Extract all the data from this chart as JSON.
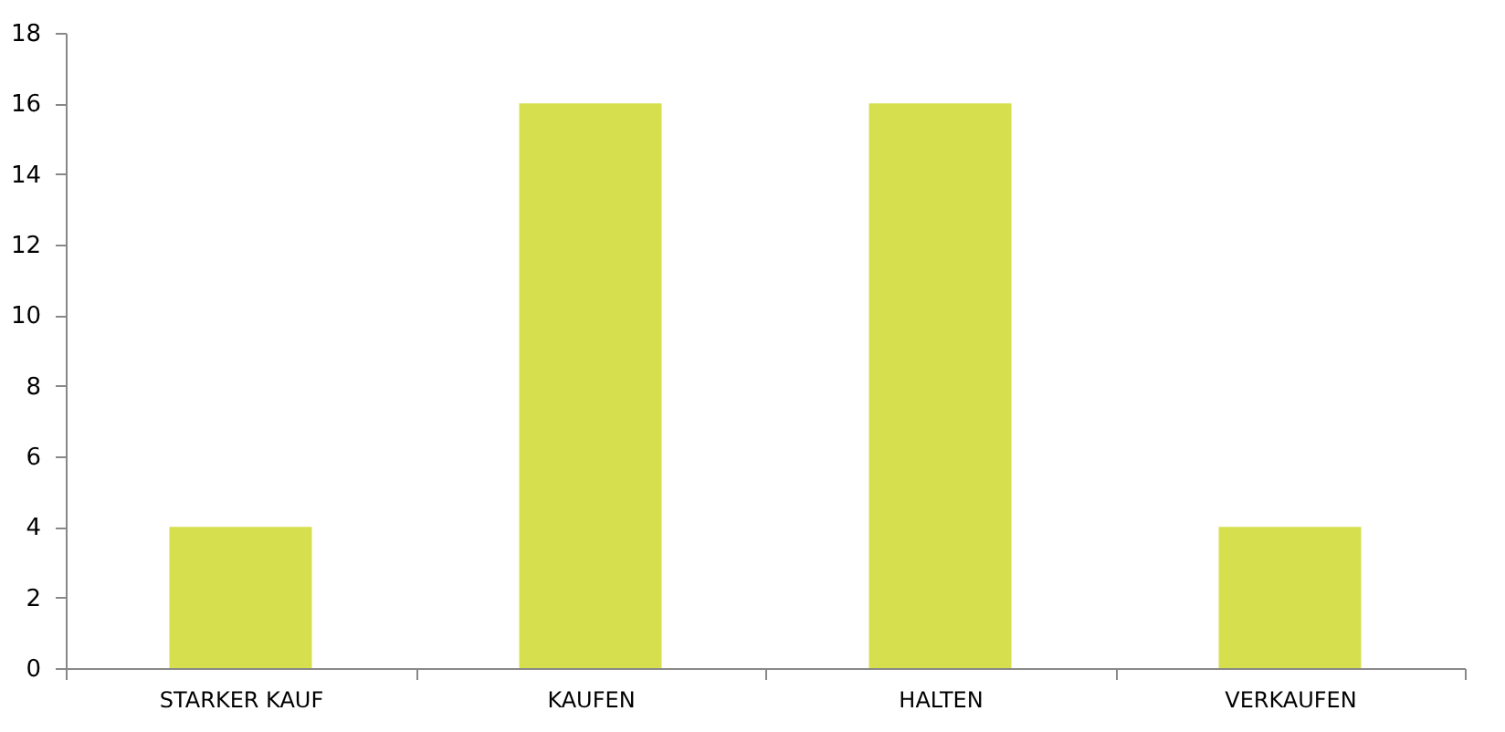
{
  "chart_data": {
    "type": "bar",
    "categories": [
      "STARKER KAUF",
      "KAUFEN",
      "HALTEN",
      "VERKAUFEN"
    ],
    "values": [
      4,
      16,
      16,
      4
    ],
    "color": "#d6e04e",
    "ylim": [
      0,
      18
    ],
    "yticks": [
      0,
      2,
      4,
      6,
      8,
      10,
      12,
      14,
      16,
      18
    ],
    "grid": false
  }
}
